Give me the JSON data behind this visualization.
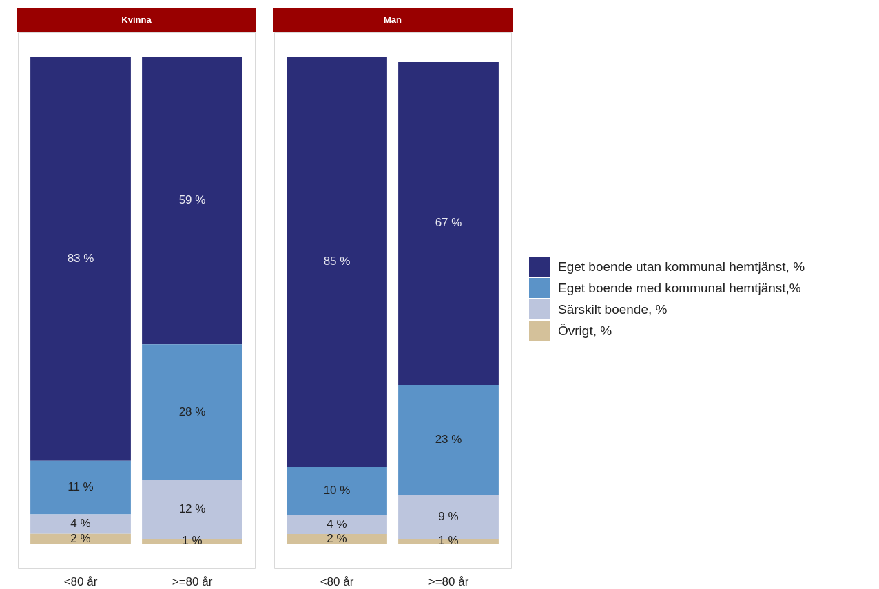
{
  "chart_data": [
    {
      "type": "bar",
      "title": "Kvinna",
      "categories": [
        "<80 år",
        ">=80 år"
      ],
      "stacked": true,
      "legend": false,
      "series": [
        {
          "color": "#d4c19a",
          "values": [
            2,
            1
          ],
          "value_labels": [
            "2 %",
            "1 %"
          ]
        },
        {
          "color": "#bcc5dd",
          "values": [
            4,
            12
          ],
          "value_labels": [
            "4 %",
            "12 %"
          ]
        },
        {
          "color": "#5b93c8",
          "values": [
            11,
            28
          ],
          "value_labels": [
            "11 %",
            "28 %"
          ]
        },
        {
          "color": "#2b2d78",
          "values": [
            83,
            59
          ],
          "value_labels": [
            "83 %",
            "59 %"
          ]
        }
      ]
    },
    {
      "type": "bar",
      "title": "Man",
      "categories": [
        "<80 år",
        ">=80 år"
      ],
      "stacked": true,
      "legend": "right",
      "series": [
        {
          "name": "Övrigt, %",
          "color": "#d4c19a",
          "values": [
            2,
            1
          ],
          "value_labels": [
            "2 %",
            "1 %"
          ]
        },
        {
          "name": "Särskilt boende, %",
          "color": "#bcc5dd",
          "values": [
            4,
            9
          ],
          "value_labels": [
            "4 %",
            "9 %"
          ]
        },
        {
          "name": "Eget boende med kommunal hemtjänst,%",
          "color": "#5b93c8",
          "values": [
            10,
            23
          ],
          "value_labels": [
            "10 %",
            "23 %"
          ]
        },
        {
          "name": "Eget boende utan kommunal hemtjänst, %",
          "color": "#2b2d78",
          "values": [
            85,
            67
          ],
          "value_labels": [
            "85 %",
            "67 %"
          ]
        }
      ]
    }
  ]
}
